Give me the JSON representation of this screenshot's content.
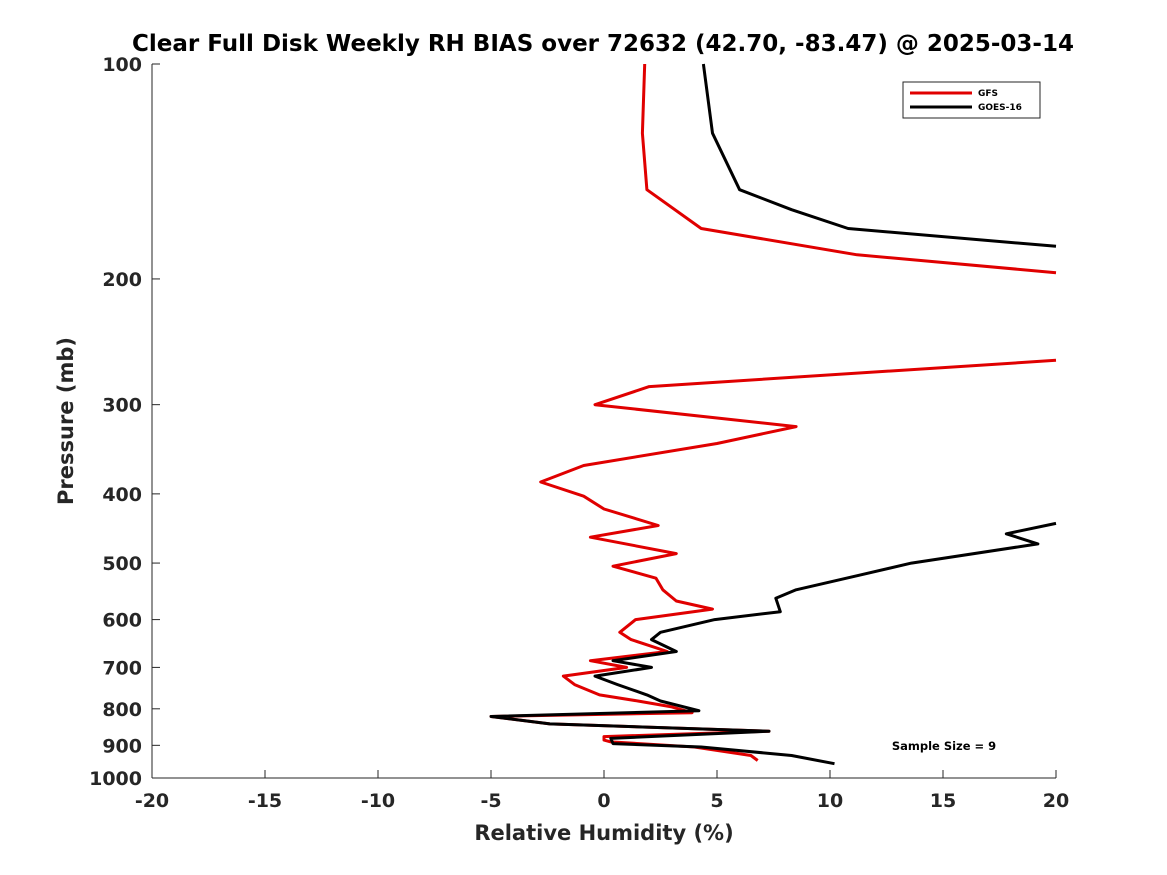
{
  "chart_data": {
    "type": "line",
    "title": "Clear Full Disk Weekly RH BIAS over 72632 (42.70, -83.47) @ 2025-03-14",
    "xlabel": "Relative Humidity (%)",
    "ylabel": "Pressure (mb)",
    "xlim": [
      -20,
      20
    ],
    "ylim": [
      100,
      1000
    ],
    "y_scale": "log",
    "y_reversed": true,
    "x_ticks": [
      -20,
      -15,
      -10,
      -5,
      0,
      5,
      10,
      15,
      20
    ],
    "y_ticks": [
      100,
      200,
      300,
      400,
      500,
      600,
      700,
      800,
      900,
      1000
    ],
    "grid": false,
    "legend_position": "top-right",
    "annotation": "Sample Size = 9",
    "series": [
      {
        "name": "GFS",
        "color": "#e00000",
        "points": [
          [
            1.8,
            100
          ],
          [
            1.7,
            125
          ],
          [
            1.9,
            150
          ],
          [
            4.3,
            170
          ],
          [
            11.2,
            185
          ],
          [
            20.0,
            196
          ],
          [
            null,
            235
          ],
          [
            20.0,
            260
          ],
          [
            2.0,
            283
          ],
          [
            -0.4,
            300
          ],
          [
            8.5,
            322
          ],
          [
            5.0,
            340
          ],
          [
            -0.9,
            365
          ],
          [
            -2.8,
            385
          ],
          [
            -0.9,
            403
          ],
          [
            0.0,
            420
          ],
          [
            2.4,
            443
          ],
          [
            -0.6,
            460
          ],
          [
            3.2,
            485
          ],
          [
            0.4,
            505
          ],
          [
            2.3,
            525
          ],
          [
            2.6,
            545
          ],
          [
            3.2,
            565
          ],
          [
            4.8,
            580
          ],
          [
            1.4,
            600
          ],
          [
            0.7,
            625
          ],
          [
            1.2,
            640
          ],
          [
            2.8,
            665
          ],
          [
            -0.6,
            685
          ],
          [
            1.0,
            700
          ],
          [
            -1.8,
            720
          ],
          [
            -1.3,
            740
          ],
          [
            -0.2,
            765
          ],
          [
            1.5,
            780
          ],
          [
            3.0,
            795
          ],
          [
            3.9,
            810
          ],
          [
            -5.0,
            820
          ],
          [
            -2.4,
            840
          ],
          [
            7.3,
            860
          ],
          [
            0.0,
            875
          ],
          [
            0.0,
            885
          ],
          [
            0.3,
            890
          ],
          [
            4.0,
            905
          ],
          [
            6.5,
            930
          ],
          [
            6.8,
            945
          ]
        ]
      },
      {
        "name": "GOES-16",
        "color": "#000000",
        "points": [
          [
            4.4,
            100
          ],
          [
            4.8,
            125
          ],
          [
            6.0,
            150
          ],
          [
            8.3,
            160
          ],
          [
            10.8,
            170
          ],
          [
            20.0,
            180
          ],
          [
            null,
            235
          ],
          [
            20.0,
            440
          ],
          [
            17.8,
            455
          ],
          [
            19.2,
            470
          ],
          [
            13.6,
            500
          ],
          [
            11.3,
            520
          ],
          [
            8.5,
            545
          ],
          [
            7.6,
            560
          ],
          [
            7.8,
            585
          ],
          [
            4.9,
            600
          ],
          [
            2.5,
            625
          ],
          [
            2.1,
            640
          ],
          [
            3.2,
            665
          ],
          [
            0.4,
            685
          ],
          [
            2.1,
            700
          ],
          [
            -0.4,
            720
          ],
          [
            0.6,
            740
          ],
          [
            1.9,
            765
          ],
          [
            2.5,
            780
          ],
          [
            4.2,
            805
          ],
          [
            -5.0,
            820
          ],
          [
            -2.4,
            840
          ],
          [
            7.3,
            860
          ],
          [
            0.3,
            880
          ],
          [
            0.4,
            895
          ],
          [
            4.3,
            905
          ],
          [
            8.3,
            930
          ],
          [
            10.2,
            955
          ]
        ]
      }
    ]
  }
}
